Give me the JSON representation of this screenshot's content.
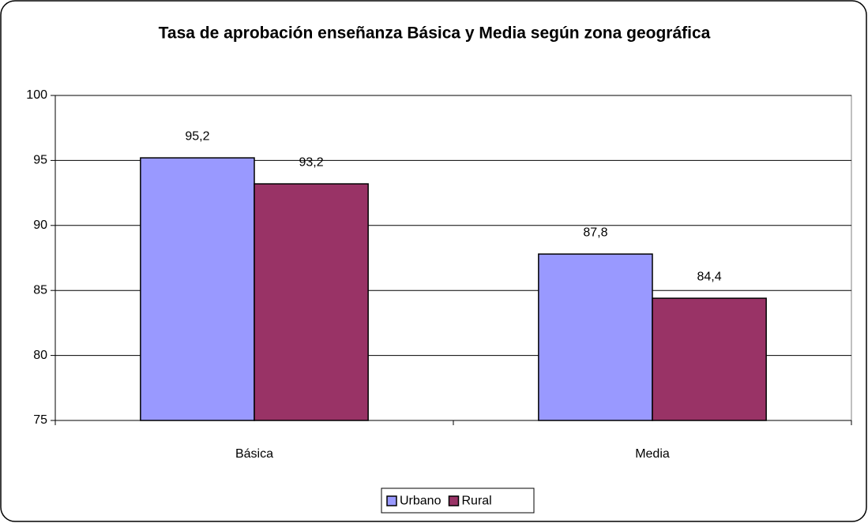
{
  "chart_data": {
    "type": "bar",
    "title": "Tasa de aprobación enseñanza Básica y Media según zona geográfica",
    "categories": [
      "Básica",
      "Media"
    ],
    "series": [
      {
        "name": "Urbano",
        "color": "#9999ff",
        "values": [
          95.2,
          87.8
        ],
        "value_labels": [
          "95,2",
          "87,8"
        ]
      },
      {
        "name": "Rural",
        "color": "#993366",
        "values": [
          93.2,
          84.4
        ],
        "value_labels": [
          "93,2",
          "84,4"
        ]
      }
    ],
    "ylim": [
      75,
      100
    ],
    "yticks": [
      75,
      80,
      85,
      90,
      95,
      100
    ],
    "grid": true,
    "legend": "bottom"
  }
}
